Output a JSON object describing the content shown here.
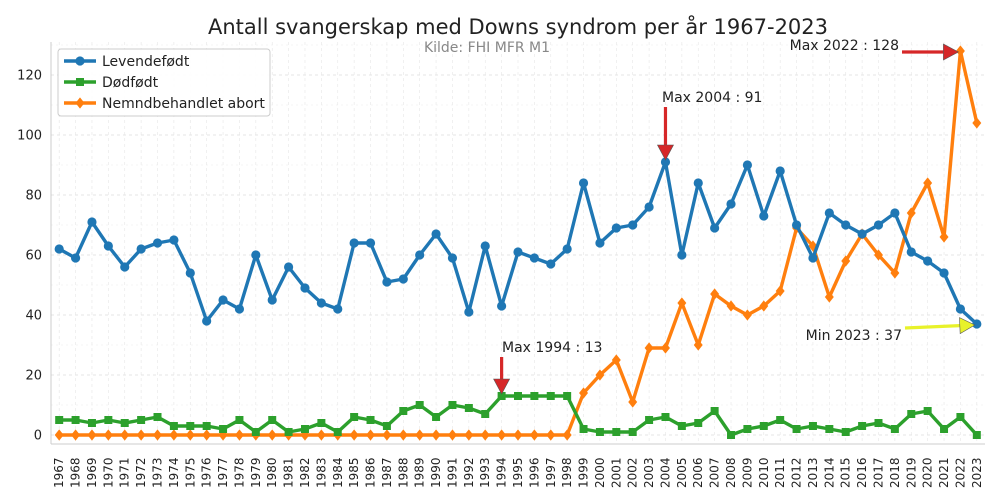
{
  "chart_data": {
    "type": "line",
    "title": "Antall svangerskap med Downs syndrom per år 1967-2023",
    "subtitle": "Kilde: FHI MFR M1",
    "xlabel": "",
    "ylabel": "",
    "ylim": [
      -3,
      131
    ],
    "xlim": [
      1966.5,
      2023.5
    ],
    "yticks": [
      0,
      20,
      40,
      60,
      80,
      100,
      120
    ],
    "grid": true,
    "legend_position": "top-left",
    "x": [
      1967,
      1968,
      1969,
      1970,
      1971,
      1972,
      1973,
      1974,
      1975,
      1976,
      1977,
      1978,
      1979,
      1980,
      1981,
      1982,
      1983,
      1984,
      1985,
      1986,
      1987,
      1988,
      1989,
      1990,
      1991,
      1992,
      1993,
      1994,
      1995,
      1996,
      1997,
      1998,
      1999,
      2000,
      2001,
      2002,
      2003,
      2004,
      2005,
      2006,
      2007,
      2008,
      2009,
      2010,
      2011,
      2012,
      2013,
      2014,
      2015,
      2016,
      2017,
      2018,
      2019,
      2020,
      2021,
      2022,
      2023
    ],
    "series": [
      {
        "name": "Levendefødt",
        "color": "#1f77b4",
        "marker": "circle",
        "values": [
          62,
          59,
          71,
          63,
          56,
          62,
          64,
          65,
          54,
          38,
          45,
          42,
          60,
          45,
          56,
          49,
          44,
          42,
          64,
          64,
          51,
          52,
          60,
          67,
          59,
          41,
          63,
          43,
          61,
          59,
          57,
          62,
          84,
          64,
          69,
          70,
          76,
          91,
          60,
          84,
          69,
          77,
          90,
          73,
          88,
          70,
          59,
          74,
          70,
          67,
          70,
          74,
          61,
          58,
          54,
          42,
          37
        ]
      },
      {
        "name": "Dødfødt",
        "color": "#2ca02c",
        "marker": "square",
        "values": [
          5,
          5,
          4,
          5,
          4,
          5,
          6,
          3,
          3,
          3,
          2,
          5,
          1,
          5,
          1,
          2,
          4,
          1,
          6,
          5,
          3,
          8,
          10,
          6,
          10,
          9,
          7,
          13,
          13,
          13,
          13,
          13,
          2,
          1,
          1,
          1,
          5,
          6,
          3,
          4,
          8,
          0,
          2,
          3,
          5,
          2,
          3,
          2,
          1,
          3,
          4,
          2,
          7,
          8,
          2,
          6,
          0
        ]
      },
      {
        "name": "Nemndbehandlet abort",
        "color": "#ff7f0e",
        "marker": "diamond",
        "values": [
          0,
          0,
          0,
          0,
          0,
          0,
          0,
          0,
          0,
          0,
          0,
          0,
          0,
          0,
          0,
          0,
          0,
          0,
          0,
          0,
          0,
          0,
          0,
          0,
          0,
          0,
          0,
          0,
          0,
          0,
          0,
          0,
          14,
          20,
          25,
          11,
          29,
          29,
          44,
          30,
          47,
          43,
          40,
          43,
          48,
          69,
          63,
          46,
          58,
          67,
          60,
          54,
          74,
          84,
          66,
          128,
          104
        ]
      }
    ],
    "annotations": [
      {
        "text": "Max 2022 : 128",
        "x": 2022,
        "y": 128,
        "arrow_color": "#d62728"
      },
      {
        "text": "Max 2004 : 91",
        "x": 2004,
        "y": 91,
        "arrow_color": "#d62728"
      },
      {
        "text": "Max 1994 : 13",
        "x": 1994,
        "y": 13,
        "arrow_color": "#d62728"
      },
      {
        "text": "Min 2023 : 37",
        "x": 2023,
        "y": 37,
        "arrow_color": "#e8f22a"
      }
    ]
  }
}
